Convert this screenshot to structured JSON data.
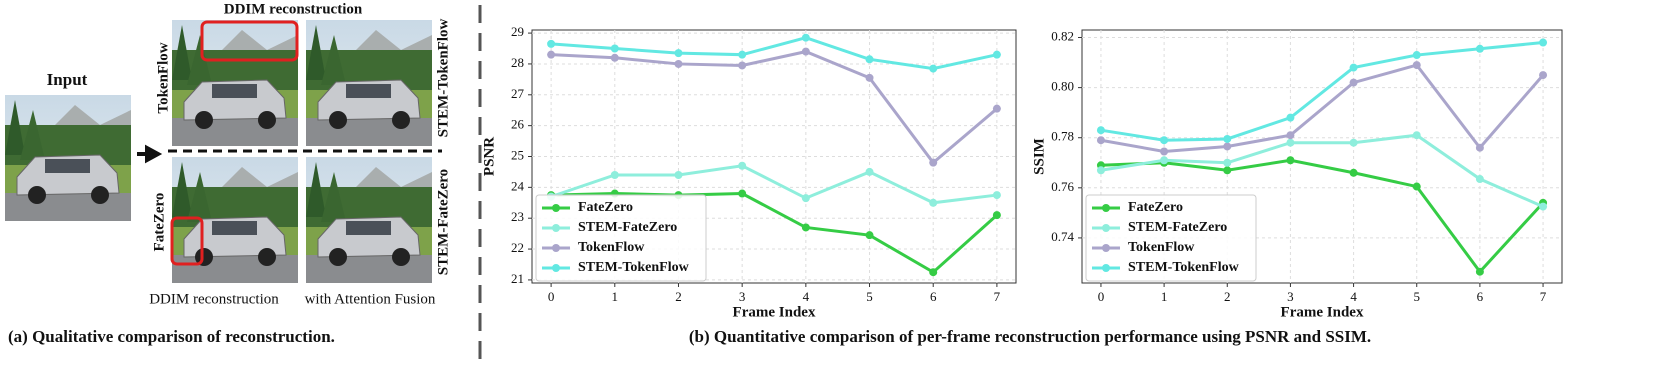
{
  "panel_a": {
    "input_label": "Input",
    "top_label": "DDIM reconstruction",
    "row1_left": "TokenFlow",
    "row1_right": "STEM-TokenFlow",
    "row2_left": "FateZero",
    "row2_right": "STEM-FateZero",
    "bottom_left": "DDIM reconstruction",
    "bottom_right": "with Attention Fusion",
    "caption": "(a) Qualitative comparison of  reconstruction."
  },
  "caption_b": "(b) Quantitative comparison of  per-frame reconstruction performance using PSNR and SSIM.",
  "chart_data": [
    {
      "type": "line",
      "xlabel": "Frame Index",
      "ylabel": "PSNR",
      "x": [
        0,
        1,
        2,
        3,
        4,
        5,
        6,
        7
      ],
      "xlim": [
        -0.3,
        7.3
      ],
      "xticks": [
        0,
        1,
        2,
        3,
        4,
        5,
        6,
        7
      ],
      "ylim": [
        20.9,
        29.1
      ],
      "yticks": [
        21,
        22,
        23,
        24,
        25,
        26,
        27,
        28,
        29
      ],
      "grid": true,
      "legend": "lower left",
      "series": [
        {
          "name": "FateZero",
          "color": "#35cc45",
          "values": [
            23.75,
            23.8,
            23.75,
            23.8,
            22.7,
            22.45,
            21.25,
            23.1
          ]
        },
        {
          "name": "STEM-FateZero",
          "color": "#8eeedc",
          "values": [
            23.7,
            24.4,
            24.4,
            24.7,
            23.65,
            24.5,
            23.5,
            23.75
          ]
        },
        {
          "name": "TokenFlow",
          "color": "#aaa5cb",
          "values": [
            28.3,
            28.2,
            28.0,
            27.95,
            28.4,
            27.55,
            24.8,
            26.55
          ]
        },
        {
          "name": "STEM-TokenFlow",
          "color": "#62e8e2",
          "values": [
            28.65,
            28.5,
            28.35,
            28.3,
            28.85,
            28.15,
            27.85,
            28.3
          ]
        }
      ]
    },
    {
      "type": "line",
      "xlabel": "Frame Index",
      "ylabel": "SSIM",
      "x": [
        0,
        1,
        2,
        3,
        4,
        5,
        6,
        7
      ],
      "xlim": [
        -0.3,
        7.3
      ],
      "xticks": [
        0,
        1,
        2,
        3,
        4,
        5,
        6,
        7
      ],
      "ylim": [
        0.722,
        0.823
      ],
      "yticks": [
        0.74,
        0.76,
        0.78,
        {
          "value": 0.8,
          "label": "0.80"
        },
        0.82
      ],
      "grid": true,
      "legend": "lower left",
      "series": [
        {
          "name": "FateZero",
          "color": "#35cc45",
          "values": [
            0.769,
            0.77,
            0.767,
            0.771,
            0.766,
            0.7605,
            0.7265,
            0.754
          ]
        },
        {
          "name": "STEM-FateZero",
          "color": "#8eeedc",
          "values": [
            0.767,
            0.771,
            0.77,
            0.778,
            0.778,
            0.781,
            0.7635,
            0.7525
          ]
        },
        {
          "name": "TokenFlow",
          "color": "#aaa5cb",
          "values": [
            0.779,
            0.7745,
            0.7765,
            0.781,
            0.802,
            0.809,
            0.776,
            0.805
          ]
        },
        {
          "name": "STEM-TokenFlow",
          "color": "#62e8e2",
          "values": [
            0.783,
            0.779,
            0.7795,
            0.788,
            0.808,
            0.813,
            0.8155,
            0.818
          ]
        }
      ]
    }
  ]
}
